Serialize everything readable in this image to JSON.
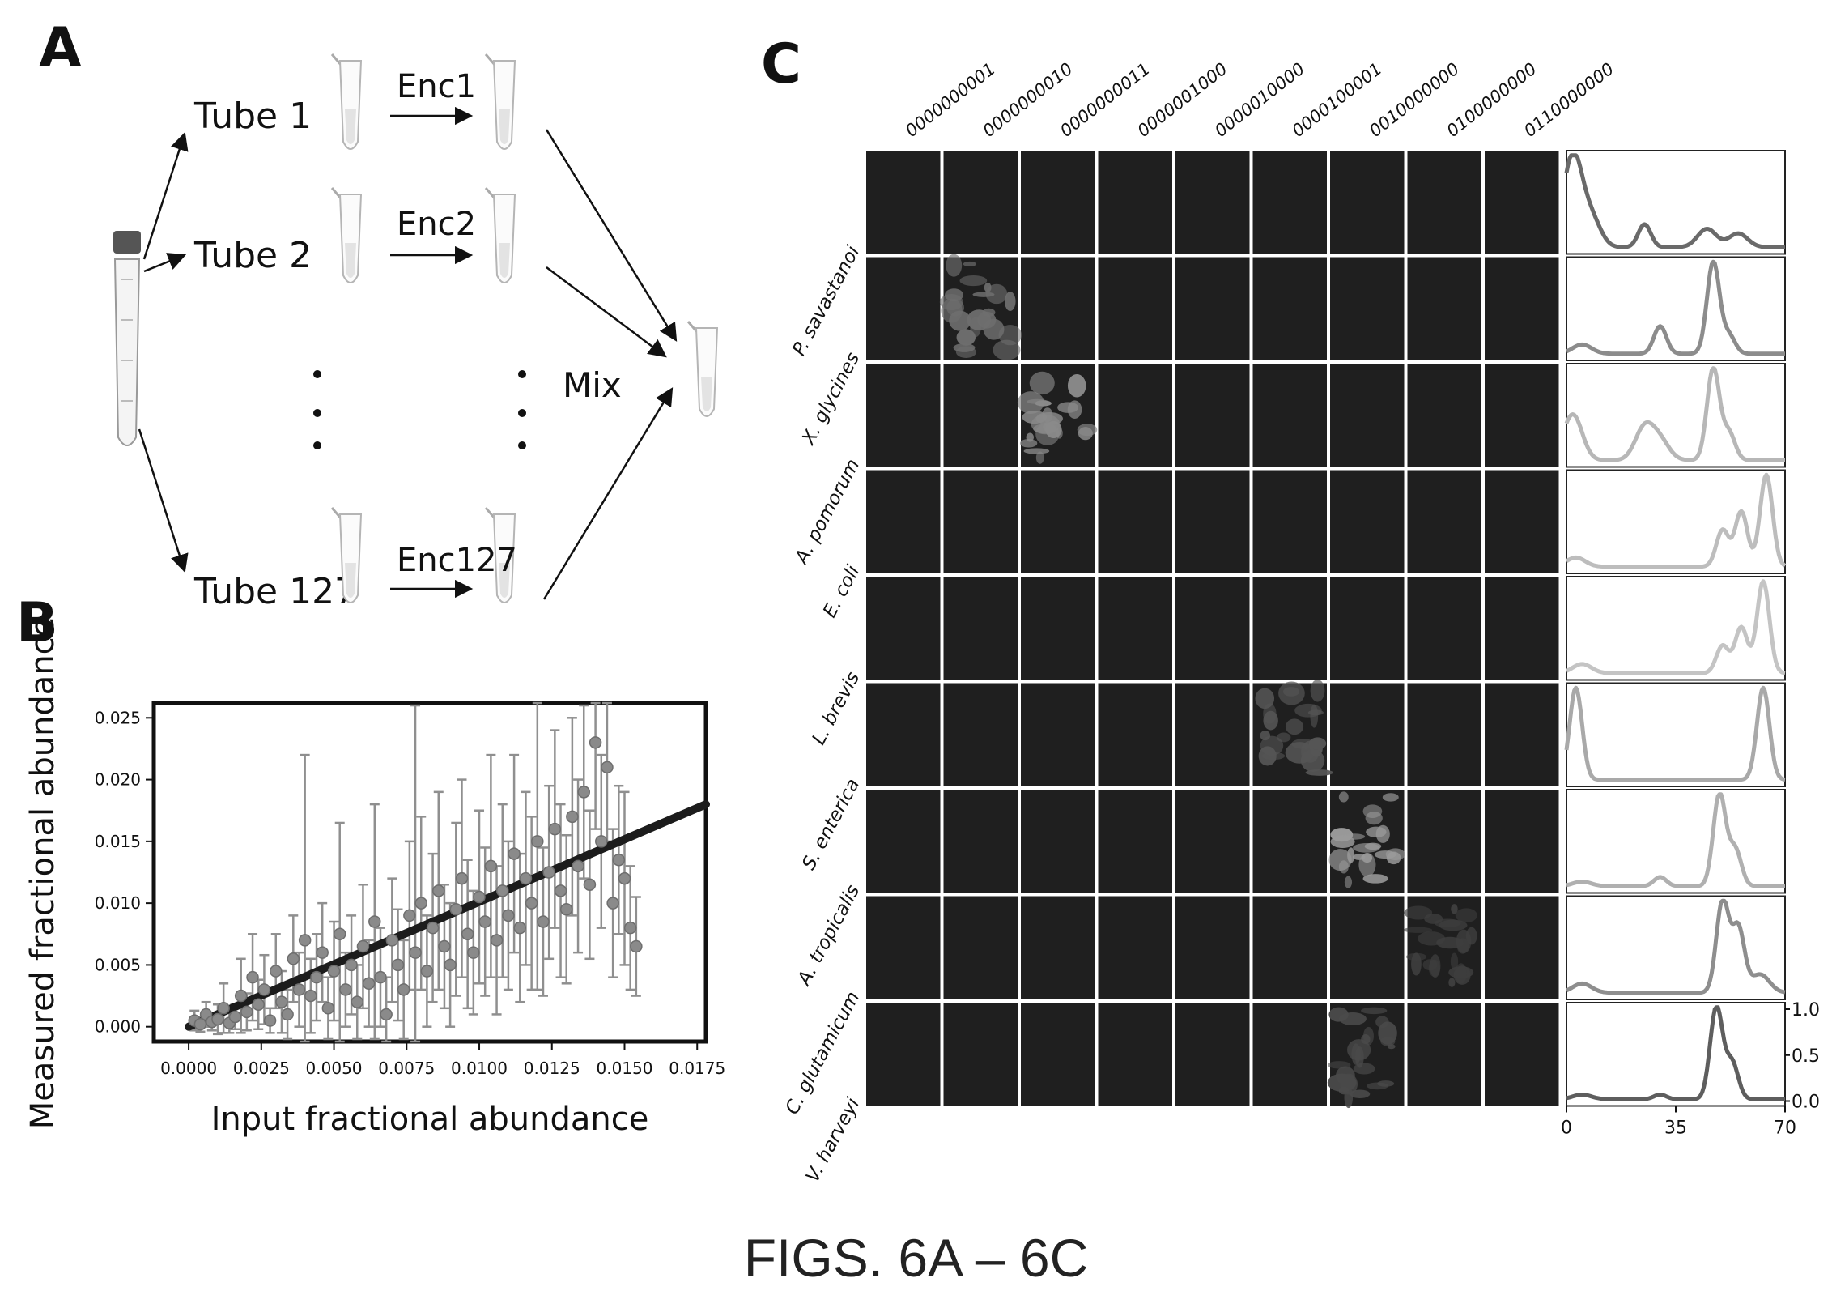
{
  "panels": {
    "a": "A",
    "b": "B",
    "c": "C"
  },
  "panel_a": {
    "tubes": [
      "Tube 1",
      "Tube 2",
      "Tube 127"
    ],
    "encodings": [
      "Enc1",
      "Enc2",
      "Enc127"
    ],
    "mix_label": "Mix"
  },
  "panel_b": {
    "chart_data": {
      "type": "scatter",
      "xlabel": "Input fractional abundance",
      "ylabel": "Measured fractional abundance",
      "xlim": [
        -0.0012,
        0.0178
      ],
      "ylim": [
        -0.0012,
        0.0262
      ],
      "x_ticks": [
        "0.0000",
        "0.0025",
        "0.0050",
        "0.0075",
        "0.0100",
        "0.0125",
        "0.0150",
        "0.0175"
      ],
      "y_ticks": [
        "0.000",
        "0.005",
        "0.010",
        "0.015",
        "0.020",
        "0.025"
      ],
      "fit_line": {
        "x": [
          0.0,
          0.0178
        ],
        "y": [
          0.0,
          0.018
        ]
      },
      "points": [
        [
          0.0002,
          0.0005,
          0.0008
        ],
        [
          0.0004,
          0.0002,
          0.0006
        ],
        [
          0.0006,
          0.001,
          0.001
        ],
        [
          0.0008,
          0.0004,
          0.0007
        ],
        [
          0.001,
          0.0006,
          0.0012
        ],
        [
          0.0012,
          0.0015,
          0.002
        ],
        [
          0.0014,
          0.0003,
          0.0008
        ],
        [
          0.0016,
          0.0008,
          0.001
        ],
        [
          0.0018,
          0.0025,
          0.003
        ],
        [
          0.002,
          0.0012,
          0.0015
        ],
        [
          0.0022,
          0.004,
          0.0035
        ],
        [
          0.0024,
          0.0018,
          0.002
        ],
        [
          0.0026,
          0.003,
          0.0028
        ],
        [
          0.0028,
          0.0005,
          0.001
        ],
        [
          0.003,
          0.0045,
          0.003
        ],
        [
          0.0032,
          0.002,
          0.0025
        ],
        [
          0.0034,
          0.001,
          0.002
        ],
        [
          0.0036,
          0.0055,
          0.0035
        ],
        [
          0.0038,
          0.003,
          0.003
        ],
        [
          0.004,
          0.007,
          0.015
        ],
        [
          0.0042,
          0.0025,
          0.003
        ],
        [
          0.0044,
          0.004,
          0.0035
        ],
        [
          0.0046,
          0.006,
          0.004
        ],
        [
          0.0048,
          0.0015,
          0.0025
        ],
        [
          0.005,
          0.0045,
          0.004
        ],
        [
          0.0052,
          0.0075,
          0.009
        ],
        [
          0.0054,
          0.003,
          0.003
        ],
        [
          0.0056,
          0.005,
          0.004
        ],
        [
          0.0058,
          0.002,
          0.003
        ],
        [
          0.006,
          0.0065,
          0.005
        ],
        [
          0.0062,
          0.0035,
          0.0035
        ],
        [
          0.0064,
          0.0085,
          0.0095
        ],
        [
          0.0066,
          0.004,
          0.004
        ],
        [
          0.0068,
          0.001,
          0.003
        ],
        [
          0.007,
          0.007,
          0.005
        ],
        [
          0.0072,
          0.005,
          0.0045
        ],
        [
          0.0074,
          0.003,
          0.004
        ],
        [
          0.0076,
          0.009,
          0.006
        ],
        [
          0.0078,
          0.006,
          0.02
        ],
        [
          0.008,
          0.01,
          0.007
        ],
        [
          0.0082,
          0.0045,
          0.0045
        ],
        [
          0.0084,
          0.008,
          0.006
        ],
        [
          0.0086,
          0.011,
          0.008
        ],
        [
          0.0088,
          0.0065,
          0.005
        ],
        [
          0.009,
          0.005,
          0.005
        ],
        [
          0.0092,
          0.0095,
          0.007
        ],
        [
          0.0094,
          0.012,
          0.008
        ],
        [
          0.0096,
          0.0075,
          0.006
        ],
        [
          0.0098,
          0.006,
          0.005
        ],
        [
          0.01,
          0.0105,
          0.007
        ],
        [
          0.0102,
          0.0085,
          0.006
        ],
        [
          0.0104,
          0.013,
          0.009
        ],
        [
          0.0106,
          0.007,
          0.006
        ],
        [
          0.0108,
          0.011,
          0.007
        ],
        [
          0.011,
          0.009,
          0.006
        ],
        [
          0.0112,
          0.014,
          0.008
        ],
        [
          0.0114,
          0.008,
          0.006
        ],
        [
          0.0116,
          0.012,
          0.007
        ],
        [
          0.0118,
          0.01,
          0.007
        ],
        [
          0.012,
          0.015,
          0.012
        ],
        [
          0.0122,
          0.0085,
          0.006
        ],
        [
          0.0124,
          0.0125,
          0.007
        ],
        [
          0.0126,
          0.016,
          0.008
        ],
        [
          0.0128,
          0.011,
          0.007
        ],
        [
          0.013,
          0.0095,
          0.006
        ],
        [
          0.0132,
          0.017,
          0.008
        ],
        [
          0.0134,
          0.013,
          0.007
        ],
        [
          0.0136,
          0.019,
          0.007
        ],
        [
          0.0138,
          0.0115,
          0.006
        ],
        [
          0.014,
          0.023,
          0.007
        ],
        [
          0.0142,
          0.015,
          0.007
        ],
        [
          0.0144,
          0.021,
          0.006
        ],
        [
          0.0146,
          0.01,
          0.006
        ],
        [
          0.0148,
          0.0135,
          0.006
        ],
        [
          0.015,
          0.012,
          0.007
        ],
        [
          0.0152,
          0.008,
          0.005
        ],
        [
          0.0154,
          0.0065,
          0.004
        ]
      ]
    }
  },
  "panel_c": {
    "barcodes": [
      "0000000001",
      "0000000010",
      "0000000011",
      "0000001000",
      "0000010000",
      "0000100001",
      "0010000000",
      "0100000000",
      "0110000000"
    ],
    "species": [
      "P. savastanoi",
      "X. glycines",
      "A. pomorum",
      "E. coli",
      "L. brevis",
      "S. enterica",
      "A. tropicalis",
      "C. glutamicum",
      "V. harveyi"
    ],
    "lit_cells": [
      [
        1,
        1,
        "#6e6e6e"
      ],
      [
        2,
        2,
        "#8a8a8a"
      ],
      [
        5,
        5,
        "#555555"
      ],
      [
        6,
        6,
        "#9a9a9a"
      ],
      [
        7,
        7,
        "#3e3e3e"
      ],
      [
        8,
        6,
        "#4a4a4a"
      ]
    ],
    "spectra_x_ticks": [
      "0",
      "35",
      "70"
    ],
    "spectra_y_ticks": [
      "1.0",
      "0.5",
      "0.0"
    ],
    "spectra_xlim": [
      0,
      70
    ],
    "spectra_ylim": [
      0,
      1
    ],
    "spectra": [
      [
        [
          2,
          1.0,
          3
        ],
        [
          8,
          0.3,
          3
        ],
        [
          25,
          0.25,
          2
        ],
        [
          45,
          0.2,
          3
        ],
        [
          55,
          0.15,
          3
        ]
      ],
      [
        [
          5,
          0.1,
          3
        ],
        [
          30,
          0.3,
          2
        ],
        [
          47,
          1.0,
          2
        ],
        [
          52,
          0.2,
          2
        ]
      ],
      [
        [
          2,
          0.5,
          3
        ],
        [
          25,
          0.35,
          3
        ],
        [
          30,
          0.2,
          3
        ],
        [
          47,
          1.0,
          2
        ],
        [
          52,
          0.3,
          2
        ]
      ],
      [
        [
          3,
          0.1,
          3
        ],
        [
          50,
          0.4,
          2
        ],
        [
          56,
          0.6,
          2
        ],
        [
          64,
          1.0,
          2
        ]
      ],
      [
        [
          5,
          0.1,
          3
        ],
        [
          50,
          0.3,
          2
        ],
        [
          56,
          0.5,
          2
        ],
        [
          63,
          1.0,
          2
        ]
      ],
      [
        [
          3,
          1.0,
          2
        ],
        [
          63,
          1.0,
          2
        ]
      ],
      [
        [
          5,
          0.05,
          3
        ],
        [
          30,
          0.1,
          2
        ],
        [
          49,
          1.0,
          2
        ],
        [
          54,
          0.4,
          2
        ]
      ],
      [
        [
          5,
          0.1,
          3
        ],
        [
          50,
          1.0,
          2
        ],
        [
          55,
          0.7,
          2
        ],
        [
          62,
          0.2,
          3
        ]
      ],
      [
        [
          5,
          0.05,
          3
        ],
        [
          30,
          0.05,
          2
        ],
        [
          48,
          1.0,
          2
        ],
        [
          53,
          0.4,
          2
        ]
      ]
    ]
  },
  "figure_caption": "FIGS. 6A – 6C"
}
